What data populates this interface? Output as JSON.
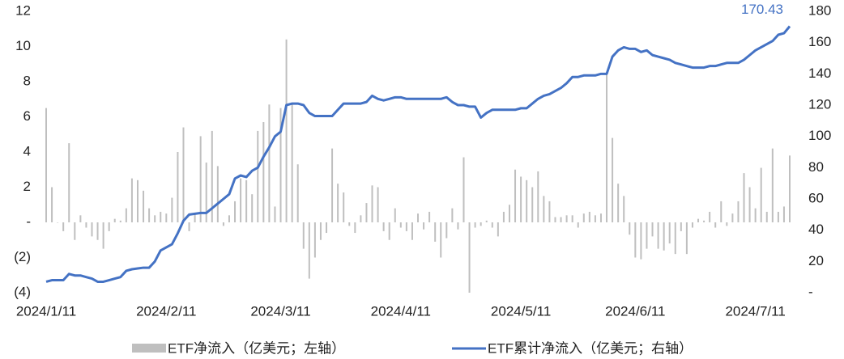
{
  "chart_data": {
    "type": "bar_line",
    "categories": [
      "2024/1/11",
      null,
      null,
      null,
      null,
      null,
      null,
      null,
      null,
      null,
      null,
      null,
      null,
      null,
      null,
      null,
      null,
      null,
      null,
      null,
      null,
      "2024/2/11",
      null,
      null,
      null,
      null,
      null,
      null,
      null,
      null,
      null,
      null,
      null,
      null,
      null,
      null,
      null,
      null,
      null,
      null,
      null,
      "2024/3/11",
      null,
      null,
      null,
      null,
      null,
      null,
      null,
      null,
      null,
      null,
      null,
      null,
      null,
      null,
      null,
      null,
      null,
      null,
      null,
      null,
      "2024/4/11",
      null,
      null,
      null,
      null,
      null,
      null,
      null,
      null,
      null,
      null,
      null,
      null,
      null,
      null,
      null,
      null,
      null,
      null,
      null,
      null,
      "2024/5/11",
      null,
      null,
      null,
      null,
      null,
      null,
      null,
      null,
      null,
      null,
      null,
      null,
      null,
      null,
      null,
      null,
      null,
      null,
      null,
      "2024/6/11",
      null,
      null,
      null,
      null,
      null,
      null,
      null,
      null,
      null,
      null,
      null,
      null,
      null,
      null,
      null,
      null,
      null,
      null,
      null,
      null,
      "2024/7/11",
      null,
      null,
      null,
      null,
      null,
      null
    ],
    "series": [
      {
        "name": "ETF净流入（亿美元；左轴）",
        "color": "#bfbfbf",
        "axis": "y",
        "values": [
          6.5,
          2,
          0,
          -0.5,
          4.5,
          -1,
          0.4,
          -0.3,
          -0.8,
          -1,
          -1.5,
          -0.5,
          0.2,
          0.1,
          0.8,
          2.5,
          2.4,
          1.8,
          0.8,
          0.4,
          0.6,
          0.5,
          1.4,
          4,
          5.4,
          -0.5,
          0.5,
          4.9,
          3.4,
          5.2,
          3.2,
          -0.2,
          0.4,
          1.2,
          2.5,
          2.4,
          1.6,
          5.2,
          5.7,
          6.7,
          0.9,
          6.5,
          10.4,
          6.7,
          3.3,
          -1.5,
          -3.2,
          -2,
          -1,
          -0.6,
          4.2,
          2.2,
          1.7,
          -0.2,
          -0.6,
          0.4,
          1.1,
          2.1,
          2,
          -0.5,
          -1,
          0.8,
          -0.3,
          -0.5,
          -1,
          0.5,
          -0.4,
          0.6,
          -1.1,
          -2,
          -0.9,
          0.8,
          -0.4,
          3.7,
          -4,
          -0.3,
          -0.2,
          0.1,
          -0.3,
          -0.8,
          0.6,
          1,
          3,
          2.6,
          2.4,
          2,
          2.9,
          1.5,
          1.2,
          0.3,
          0.3,
          0.4,
          0.4,
          -0.3,
          0.5,
          0.6,
          0.4,
          0.5,
          8.5,
          4.8,
          2.2,
          1.5,
          -0.7,
          -2,
          -2.1,
          -1.5,
          -0.8,
          -1.5,
          -1.6,
          -1.2,
          -1.8,
          -0.5,
          -1.8,
          -0.3,
          0.2,
          0.1,
          0.6,
          -0.3,
          1.2,
          -0.2,
          0.5,
          1.2,
          2.8,
          2,
          0.8,
          3.1,
          0.6,
          4.2,
          0.6,
          0.9,
          3.8
        ]
      },
      {
        "name": "ETF累计净流入（亿美元；右轴）",
        "color": "#4472c4",
        "axis": "y2",
        "values": [
          7,
          8,
          8,
          8,
          12,
          11,
          11,
          10,
          9,
          7,
          7,
          8,
          9,
          10,
          14,
          15,
          15.5,
          16,
          16,
          20,
          27,
          29,
          31,
          38,
          46,
          50,
          50.5,
          51,
          51,
          54,
          57,
          60,
          63,
          73,
          75,
          74,
          78,
          80,
          87,
          93,
          100,
          103,
          120,
          121,
          121,
          120,
          115,
          113,
          113,
          113,
          113,
          117,
          121,
          121,
          121,
          121,
          122,
          126,
          124,
          123,
          124,
          125,
          125,
          124,
          124,
          124,
          124,
          124,
          124,
          124,
          125,
          122,
          120,
          120,
          119,
          119,
          112,
          115,
          117,
          117,
          117,
          117,
          117,
          118,
          118,
          121,
          124,
          126,
          127,
          129,
          131,
          134,
          138,
          138,
          139,
          139,
          139,
          140,
          140,
          151,
          155,
          157,
          156,
          156,
          154,
          155,
          152,
          151,
          150,
          149,
          147,
          146,
          145,
          144,
          144,
          144,
          145,
          145,
          146,
          147,
          147,
          147,
          149,
          152,
          155,
          157,
          159,
          161,
          165,
          166,
          170.43
        ]
      }
    ],
    "ylim": [
      -4,
      12
    ],
    "yticks": [
      {
        "value": -4,
        "label": "(4)"
      },
      {
        "value": -2,
        "label": "(2)"
      },
      {
        "value": 0,
        "label": "-"
      },
      2,
      4,
      6,
      8,
      10,
      12
    ],
    "y2lim": [
      0,
      180
    ],
    "y2ticks": [
      {
        "value": 0,
        "label": "-"
      },
      20,
      40,
      60,
      80,
      100,
      120,
      140,
      160,
      180
    ],
    "grid": false
  }
}
